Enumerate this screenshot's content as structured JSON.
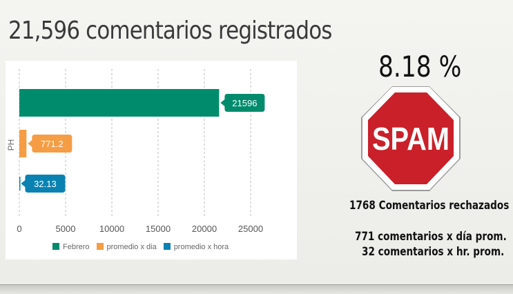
{
  "title": "21,596 comentarios registrados",
  "spam": {
    "percent": "8.18 %",
    "sign_text": "SPAM",
    "rejected": "1768  Comentarios rechazados",
    "per_day": "771 comentarios x día prom.",
    "per_hour": "32 comentarios x hr. prom."
  },
  "colors": {
    "febrero": "#008c6c",
    "promedio_dia": "#f59d45",
    "promedio_hora": "#0a82b1",
    "stop_red": "#c9202a"
  },
  "chart_data": {
    "type": "bar",
    "orientation": "horizontal",
    "category_label": "PH",
    "xlim": [
      0,
      25000
    ],
    "xticks": [
      "0",
      "5000",
      "10000",
      "15000",
      "20000",
      "25000"
    ],
    "grid": true,
    "legend_position": "bottom",
    "series": [
      {
        "name": "Febrero",
        "value": 21596,
        "label": "21596",
        "color": "#008c6c"
      },
      {
        "name": "promedio x dia",
        "value": 771.2,
        "label": "771.2",
        "color": "#f59d45"
      },
      {
        "name": "promedio x hora",
        "value": 32.13,
        "label": "32.13",
        "color": "#0a82b1"
      }
    ]
  }
}
